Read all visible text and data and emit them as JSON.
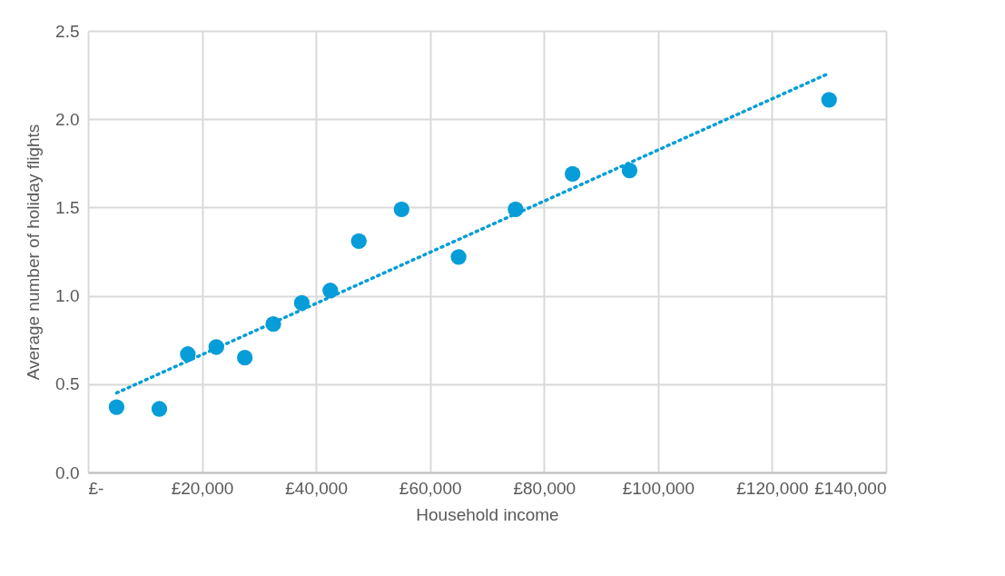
{
  "chart_data": {
    "type": "scatter",
    "xlabel": "Household income",
    "ylabel": "Average number of holiday flights",
    "xlim": [
      0,
      140000
    ],
    "ylim": [
      0,
      2.5
    ],
    "xticks": [
      {
        "value": 0,
        "label": "£-"
      },
      {
        "value": 20000,
        "label": "£20,000"
      },
      {
        "value": 40000,
        "label": "£40,000"
      },
      {
        "value": 60000,
        "label": "£60,000"
      },
      {
        "value": 80000,
        "label": "£80,000"
      },
      {
        "value": 100000,
        "label": "£100,000"
      },
      {
        "value": 120000,
        "label": "£120,000"
      },
      {
        "value": 140000,
        "label": "£140,000"
      }
    ],
    "yticks": [
      {
        "value": 0,
        "label": "0.0"
      },
      {
        "value": 0.5,
        "label": "0.5"
      },
      {
        "value": 1,
        "label": "1.0"
      },
      {
        "value": 1.5,
        "label": "1.5"
      },
      {
        "value": 2,
        "label": "2.0"
      },
      {
        "value": 2.5,
        "label": "2.5"
      }
    ],
    "grid": true,
    "series": [
      {
        "marker": "circle",
        "color": "#069dd8",
        "x": [
          5000,
          12500,
          17500,
          22500,
          27500,
          32500,
          37500,
          42500,
          47500,
          55000,
          65000,
          75000,
          85000,
          95000,
          130000
        ],
        "values": [
          0.37,
          0.36,
          0.67,
          0.71,
          0.65,
          0.84,
          0.96,
          1.03,
          1.31,
          1.49,
          1.22,
          1.49,
          1.69,
          1.71,
          2.11
        ]
      },
      {
        "type": "line",
        "marker": "none",
        "color": "#069dd8",
        "line_style": "dotted",
        "x": [
          5000,
          130000
        ],
        "values": [
          0.45,
          2.26
        ]
      }
    ]
  }
}
